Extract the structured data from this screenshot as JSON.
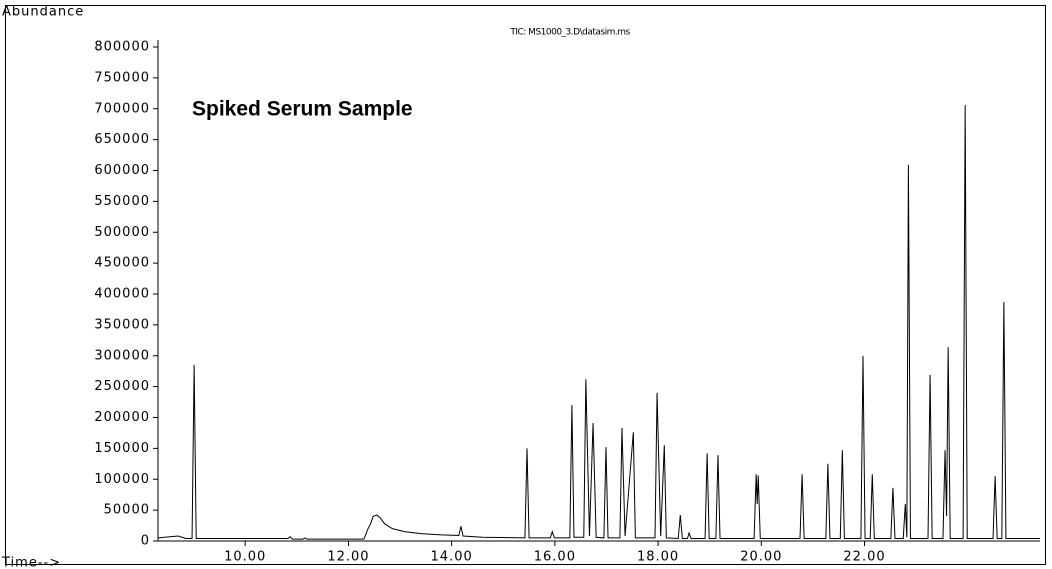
{
  "chart_data": {
    "type": "line",
    "title": "TIC: MS1000_3.D\\datasim.ms",
    "annotation": "Spiked Serum Sample",
    "ylabel": "Abundance",
    "xlabel": "Time-->",
    "color": "#000000",
    "xlim": [
      8.31,
      25.4
    ],
    "ylim": [
      0,
      800000
    ],
    "xticks": [
      {
        "value": 10,
        "label": "10.00"
      },
      {
        "value": 12,
        "label": "12.00"
      },
      {
        "value": 14,
        "label": "14.00"
      },
      {
        "value": 16,
        "label": "16.00"
      },
      {
        "value": 18,
        "label": "18.00"
      },
      {
        "value": 20,
        "label": "20.00"
      },
      {
        "value": 22,
        "label": "22.00"
      }
    ],
    "yticks": [
      0,
      50000,
      100000,
      150000,
      200000,
      250000,
      300000,
      350000,
      400000,
      450000,
      500000,
      550000,
      600000,
      650000,
      700000,
      750000,
      800000
    ],
    "x": [
      8.31,
      8.7,
      8.85,
      8.97,
      9.01,
      9.05,
      10.83,
      10.87,
      10.91,
      11.12,
      11.16,
      11.2,
      12.3,
      12.38,
      12.43,
      12.48,
      12.55,
      12.61,
      12.7,
      12.85,
      13.1,
      13.4,
      13.8,
      14.14,
      14.18,
      14.22,
      14.6,
      15.42,
      15.46,
      15.5,
      15.91,
      15.95,
      15.99,
      16.29,
      16.33,
      16.37,
      16.56,
      16.6,
      16.67,
      16.74,
      16.8,
      16.95,
      16.99,
      17.03,
      17.26,
      17.3,
      17.36,
      17.52,
      17.56,
      17.94,
      17.98,
      18.05,
      18.12,
      18.16,
      18.39,
      18.43,
      18.47,
      18.57,
      18.6,
      18.64,
      18.91,
      18.95,
      18.99,
      19.12,
      19.16,
      19.2,
      19.86,
      19.9,
      19.92,
      19.94,
      19.98,
      20.75,
      20.79,
      20.83,
      21.25,
      21.29,
      21.33,
      21.53,
      21.57,
      21.61,
      21.93,
      21.97,
      22.01,
      22.11,
      22.15,
      22.19,
      22.51,
      22.55,
      22.59,
      22.75,
      22.79,
      22.82,
      22.85,
      22.89,
      23.23,
      23.27,
      23.31,
      23.52,
      23.56,
      23.59,
      23.62,
      23.66,
      23.91,
      23.95,
      23.99,
      24.49,
      24.53,
      24.57,
      24.66,
      24.7,
      24.74,
      25.4
    ],
    "values": [
      5000,
      8000,
      4000,
      4000,
      285000,
      4000,
      4000,
      7000,
      3000,
      3000,
      5000,
      3000,
      3000,
      20000,
      28000,
      40000,
      42000,
      38000,
      28000,
      20000,
      15000,
      12000,
      10000,
      9000,
      24000,
      8000,
      6000,
      5000,
      150000,
      5000,
      5000,
      15000,
      5000,
      5000,
      220000,
      6000,
      6000,
      262000,
      8000,
      191000,
      6000,
      5000,
      152000,
      5000,
      5000,
      183000,
      8000,
      176000,
      5000,
      5000,
      240000,
      8000,
      155000,
      5000,
      4000,
      42000,
      4000,
      4000,
      13000,
      4000,
      4000,
      142000,
      4000,
      4000,
      139000,
      4000,
      4000,
      108000,
      60000,
      106000,
      4000,
      4000,
      108000,
      4000,
      4000,
      125000,
      4000,
      4000,
      147000,
      4000,
      4000,
      300000,
      4000,
      4000,
      108000,
      4000,
      4000,
      86000,
      4000,
      4000,
      60000,
      6000,
      609000,
      4000,
      4000,
      269000,
      4000,
      4000,
      147000,
      40000,
      314000,
      4000,
      4000,
      706000,
      4000,
      4000,
      105000,
      4000,
      4000,
      387000,
      4000,
      4000
    ]
  }
}
